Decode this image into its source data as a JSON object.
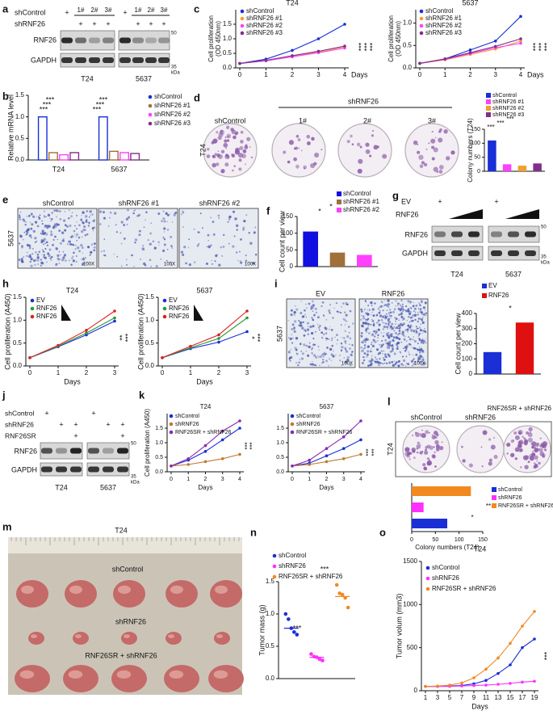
{
  "panels": [
    "a",
    "b",
    "c",
    "d",
    "e",
    "f",
    "g",
    "h",
    "i",
    "j",
    "k",
    "l",
    "m",
    "n",
    "o"
  ],
  "blot_a": {
    "conditions": [
      "shControl",
      "shRNF26"
    ],
    "lanes": [
      "1#",
      "2#",
      "3#"
    ],
    "plus": "+",
    "proteins": [
      "RNF26",
      "GAPDH"
    ],
    "markers": [
      "50",
      "35"
    ],
    "unit": "kDa",
    "cells": [
      "T24",
      "5637"
    ]
  },
  "dish_d": {
    "group": "shRNF26",
    "labels": [
      "shControl",
      "1#",
      "2#",
      "3#"
    ],
    "cell": "T24"
  },
  "micro_e": {
    "labels": [
      "shControl",
      "shRNF26 #1",
      "shRNF26 #2"
    ],
    "cell": "5637",
    "magnification": "100X"
  },
  "blot_g": {
    "conditions": [
      "EV",
      "RNF26"
    ],
    "plus": "+",
    "proteins": [
      "RNF26",
      "GAPDH"
    ],
    "markers": [
      "50",
      "35"
    ],
    "unit": "kDa",
    "cells": [
      "T24",
      "5637"
    ]
  },
  "micro_i": {
    "labels": [
      "EV",
      "RNF26"
    ],
    "cell": "5637",
    "magnification": "100X"
  },
  "blot_j": {
    "conditions": [
      "shControl",
      "shRNF26",
      "RNF26SR"
    ],
    "plus": "+",
    "proteins": [
      "RNF26",
      "GAPDH"
    ],
    "markers": [
      "50",
      "35"
    ],
    "unit": "kDa",
    "cells": [
      "T24",
      "5637"
    ]
  },
  "dish_l": {
    "labels": [
      "shControl",
      "shRNF26",
      "RNF26SR + shRNF26"
    ],
    "cell": "T24"
  },
  "photo_m": {
    "title": "T24",
    "labels": [
      "shControl",
      "shRNF26",
      "RNF26SR + shRNF26"
    ]
  },
  "chart_data": [
    {
      "type": "line",
      "title": "T24",
      "y_label": [
        "Cell proliferation",
        "(OD 450nm)"
      ],
      "x_label": "Days",
      "x": [
        0,
        1,
        2,
        3,
        4
      ],
      "xlim": [
        0,
        4
      ],
      "xticks": [
        0,
        1,
        2,
        3,
        4
      ],
      "ylim": [
        0,
        2
      ],
      "yticks": [
        {
          "value": 0,
          "label": "0.0"
        },
        0.5,
        {
          "value": 1,
          "label": "1.0"
        },
        1.5
      ],
      "series": [
        {
          "name": "shControl",
          "color": "#1a2fd6",
          "values": [
            0.15,
            0.3,
            0.6,
            1.0,
            1.5
          ]
        },
        {
          "name": "shRNF26 #1",
          "color": "#f0a030",
          "values": [
            0.15,
            0.25,
            0.4,
            0.55,
            0.72
          ]
        },
        {
          "name": "shRNF26 #2",
          "color": "#ff40ff",
          "values": [
            0.15,
            0.24,
            0.38,
            0.52,
            0.68
          ]
        },
        {
          "name": "shRNF26 #3",
          "color": "#80308a",
          "values": [
            0.15,
            0.26,
            0.42,
            0.57,
            0.75
          ]
        }
      ],
      "annotations": [
        "***",
        "***",
        "***"
      ]
    },
    {
      "type": "line",
      "title": "5637",
      "y_label": [
        "Cell proliferation",
        "(OD 450nm)"
      ],
      "x_label": "Days",
      "x": [
        0,
        1,
        2,
        3,
        4
      ],
      "xlim": [
        0,
        4
      ],
      "xticks": [
        0,
        1,
        2,
        3,
        4
      ],
      "ylim": [
        0,
        1.3
      ],
      "yticks": [
        {
          "value": 0,
          "label": "0.0"
        },
        0.5,
        {
          "value": 1,
          "label": "1.0"
        }
      ],
      "series": [
        {
          "name": "shControl",
          "color": "#1a2fd6",
          "values": [
            0.1,
            0.2,
            0.4,
            0.6,
            1.15
          ]
        },
        {
          "name": "shRNF26 #1",
          "color": "#f0a030",
          "values": [
            0.1,
            0.18,
            0.3,
            0.42,
            0.6
          ]
        },
        {
          "name": "shRNF26 #2",
          "color": "#ff40ff",
          "values": [
            0.1,
            0.19,
            0.32,
            0.45,
            0.55
          ]
        },
        {
          "name": "shRNF26 #3",
          "color": "#80308a",
          "values": [
            0.1,
            0.2,
            0.34,
            0.48,
            0.65
          ]
        }
      ],
      "annotations": [
        "***",
        "***",
        "***"
      ]
    },
    {
      "type": "bar",
      "y_label": "Relative mRNA level",
      "categories": [
        "T24",
        "5637"
      ],
      "ylim": [
        0,
        1.5
      ],
      "yticks": [
        {
          "value": 0,
          "label": "0.0"
        },
        0.5,
        {
          "value": 1,
          "label": "1.0"
        },
        1.5
      ],
      "series": [
        {
          "name": "shControl",
          "color": "#1a2fd6",
          "values": [
            1.0,
            1.0
          ]
        },
        {
          "name": "shRNF26 #1",
          "color": "#a0703a",
          "values": [
            0.17,
            0.2
          ]
        },
        {
          "name": "shRNF26 #2",
          "color": "#ff40ff",
          "values": [
            0.12,
            0.17
          ]
        },
        {
          "name": "shRNF26 #3",
          "color": "#80308a",
          "values": [
            0.17,
            0.15
          ]
        }
      ],
      "annotations": [
        "***",
        "***",
        "***",
        "***",
        "***",
        "***"
      ]
    },
    {
      "type": "bar",
      "y_label": "Colony numbers (T24)",
      "categories": [
        "shControl",
        "shRNF26 #1",
        "shRNF26 #2",
        "shRNF26 #3"
      ],
      "colors": [
        "#1a2fd6",
        "#ff40ff",
        "#f0a030",
        "#80308a"
      ],
      "values": [
        110,
        25,
        20,
        28
      ],
      "ylim": [
        0,
        150
      ],
      "yticks": [
        0,
        50,
        100,
        150
      ],
      "annotations": [
        "***",
        "***",
        "***"
      ]
    },
    {
      "type": "bar",
      "y_label": "Cell count per view",
      "categories": [
        "shControl",
        "shRNF26 #1",
        "shRNF26 #2"
      ],
      "colors": [
        "#1010e0",
        "#a0703a",
        "#ff40ff"
      ],
      "values": [
        105,
        42,
        35
      ],
      "ylim": [
        0,
        150
      ],
      "yticks": [
        0,
        50,
        100,
        150
      ],
      "annotations": [
        "*",
        "*"
      ]
    },
    {
      "type": "line",
      "title": "T24",
      "y_label": "Cell proliferation (A450)",
      "x_label": "Days",
      "x": [
        0,
        1,
        2,
        3
      ],
      "xlim": [
        0,
        3
      ],
      "xticks": [
        0,
        1,
        2,
        3
      ],
      "ylim": [
        0,
        1.5
      ],
      "yticks": [
        {
          "value": 0,
          "label": "0.0"
        },
        0.5,
        {
          "value": 1,
          "label": "1.0"
        },
        1.5
      ],
      "series": [
        {
          "name": "EV",
          "color": "#1a2fd6",
          "values": [
            0.18,
            0.42,
            0.68,
            0.98
          ]
        },
        {
          "name": "RNF26",
          "color": "#2a9a3a",
          "values": [
            0.18,
            0.43,
            0.72,
            1.05
          ]
        },
        {
          "name": "RNF26",
          "color": "#e02020",
          "values": [
            0.18,
            0.45,
            0.78,
            1.2
          ]
        }
      ],
      "annotations": [
        "**",
        "***"
      ]
    },
    {
      "type": "line",
      "title": "5637",
      "y_label": "Cell proliferation (A450)",
      "x_label": "Days",
      "x": [
        0,
        1,
        2,
        3
      ],
      "xlim": [
        0,
        3
      ],
      "xticks": [
        0,
        1,
        2,
        3
      ],
      "ylim": [
        0,
        1.5
      ],
      "yticks": [
        {
          "value": 0,
          "label": "0.0"
        },
        0.5,
        {
          "value": 1,
          "label": "1.0"
        },
        1.5
      ],
      "series": [
        {
          "name": "EV",
          "color": "#1a2fd6",
          "values": [
            0.18,
            0.38,
            0.52,
            0.75
          ]
        },
        {
          "name": "RNF26",
          "color": "#2a9a3a",
          "values": [
            0.18,
            0.4,
            0.6,
            1.05
          ]
        },
        {
          "name": "RNF26",
          "color": "#e02020",
          "values": [
            0.18,
            0.43,
            0.68,
            1.2
          ]
        }
      ],
      "annotations": [
        "*",
        "***"
      ]
    },
    {
      "type": "bar",
      "y_label": "Cell count per view",
      "categories": [
        "EV",
        "RNF26"
      ],
      "colors": [
        "#1a2fd6",
        "#e01010"
      ],
      "values": [
        145,
        340
      ],
      "ylim": [
        0,
        400
      ],
      "yticks": [
        0,
        100,
        200,
        300,
        400
      ],
      "annotations": [
        "*"
      ]
    },
    {
      "type": "line",
      "title": "T24",
      "y_label": "Cell proliferation (A450)",
      "x_label": "Days",
      "x": [
        0,
        1,
        2,
        3,
        4
      ],
      "xlim": [
        0,
        4
      ],
      "xticks": [
        0,
        1,
        2,
        3,
        4
      ],
      "ylim": [
        0,
        2
      ],
      "yticks": [
        {
          "value": 0,
          "label": "0.0"
        },
        0.5,
        {
          "value": 1,
          "label": "1.0"
        },
        1.5
      ],
      "series": [
        {
          "name": "shControl",
          "color": "#1a2fd6",
          "values": [
            0.2,
            0.4,
            0.7,
            1.1,
            1.5
          ]
        },
        {
          "name": "shRNF26",
          "color": "#c07a30",
          "values": [
            0.2,
            0.25,
            0.35,
            0.45,
            0.6
          ]
        },
        {
          "name": "RNF26SR + shRNF26",
          "color": "#8a2ab0",
          "values": [
            0.2,
            0.45,
            0.9,
            1.4,
            1.75
          ]
        }
      ],
      "annotations": [
        "***",
        "***"
      ]
    },
    {
      "type": "line",
      "title": "5637",
      "x_label": "Days",
      "x": [
        0,
        1,
        2,
        3,
        4
      ],
      "xlim": [
        0,
        4
      ],
      "xticks": [
        0,
        1,
        2,
        3,
        4
      ],
      "ylim": [
        0,
        2
      ],
      "yticks": [
        {
          "value": 0,
          "label": "0.0"
        },
        0.5,
        {
          "value": 1,
          "label": "1.0"
        },
        1.5
      ],
      "series": [
        {
          "name": "shControl",
          "color": "#1a2fd6",
          "values": [
            0.2,
            0.3,
            0.55,
            0.8,
            1.1
          ]
        },
        {
          "name": "shRNF26",
          "color": "#c07a30",
          "values": [
            0.2,
            0.25,
            0.35,
            0.45,
            0.6
          ]
        },
        {
          "name": "RNF26SR + shRNF26",
          "color": "#8a2ab0",
          "values": [
            0.2,
            0.4,
            0.8,
            1.2,
            1.75
          ]
        }
      ],
      "annotations": [
        "***",
        "***"
      ]
    },
    {
      "type": "hbar",
      "x_label": "Colony numbers (T24)",
      "categories": [
        "shControl",
        "shRNF26",
        "RNF26SR + shRNF26"
      ],
      "colors": [
        "#1a2fd6",
        "#ff30ff",
        "#f08a20"
      ],
      "values": [
        75,
        25,
        125
      ],
      "xlim": [
        0,
        150
      ],
      "xticks": [
        0,
        50,
        100,
        150
      ],
      "annotations": [
        "**",
        "*"
      ]
    },
    {
      "type": "strip",
      "y_label": "Tumor mass (g)",
      "categories": [
        "shControl",
        "shRNF26",
        "RNF26SR + shRNF26"
      ],
      "colors": [
        "#1a2fd6",
        "#ff30ff",
        "#f08a20"
      ],
      "values": [
        [
          1.0,
          0.92,
          0.78,
          0.72,
          0.68
        ],
        [
          0.38,
          0.34,
          0.33,
          0.3,
          0.28
        ],
        [
          1.45,
          1.32,
          1.3,
          1.25,
          1.1
        ]
      ],
      "means": [
        0.78,
        0.33,
        1.27
      ],
      "ylim": [
        0,
        1.5
      ],
      "yticks": [
        {
          "value": 0,
          "label": "0.0"
        },
        0.5,
        {
          "value": 1,
          "label": "1.0"
        },
        1.5
      ],
      "annotations": [
        "***",
        "***"
      ]
    },
    {
      "type": "line",
      "title": "T24",
      "y_label": "Tumor volum (mm3)",
      "x_label": "Days",
      "x": [
        1,
        3,
        5,
        7,
        9,
        11,
        13,
        15,
        17,
        19
      ],
      "xlim": [
        1,
        19
      ],
      "xticks": [
        1,
        3,
        5,
        7,
        9,
        11,
        13,
        15,
        17,
        19
      ],
      "ylim": [
        0,
        1500
      ],
      "yticks": [
        0,
        500,
        1000,
        1500
      ],
      "series": [
        {
          "name": "shControl",
          "color": "#1a2fd6",
          "values": [
            50,
            50,
            55,
            60,
            80,
            120,
            200,
            300,
            500,
            600
          ]
        },
        {
          "name": "shRNF26",
          "color": "#ff30ff",
          "values": [
            50,
            50,
            50,
            55,
            60,
            65,
            75,
            85,
            100,
            110
          ]
        },
        {
          "name": "RNF26SR + shRNF26",
          "color": "#f08a20",
          "values": [
            50,
            55,
            65,
            90,
            150,
            250,
            380,
            550,
            750,
            920
          ]
        }
      ],
      "annotations": [
        "***"
      ]
    }
  ]
}
